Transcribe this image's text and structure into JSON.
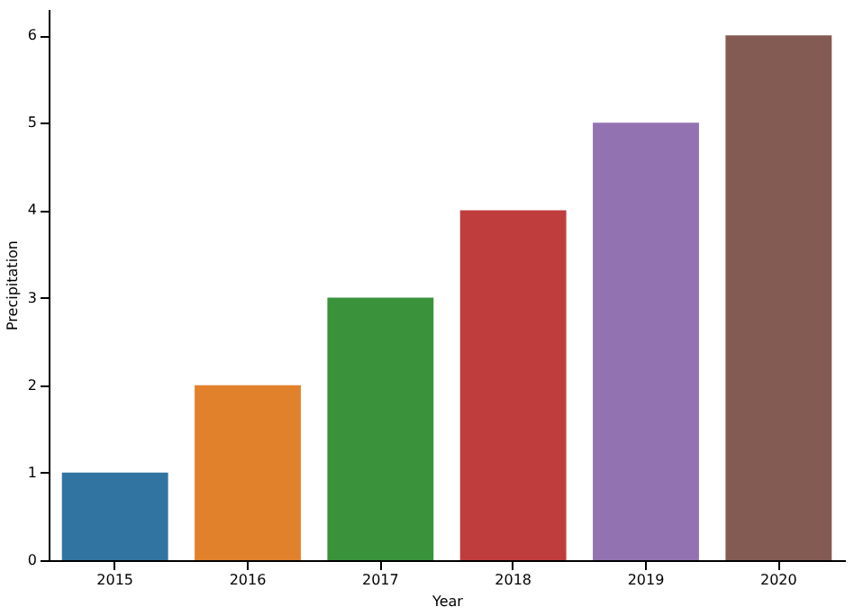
{
  "chart_data": {
    "type": "bar",
    "xlabel": "Year",
    "ylabel": "Precipitation",
    "categories": [
      "2015",
      "2016",
      "2017",
      "2018",
      "2019",
      "2020"
    ],
    "values": [
      1,
      2,
      3,
      4,
      5,
      6
    ],
    "colors": [
      "#3274a1",
      "#e1812c",
      "#3a923a",
      "#c03d3e",
      "#9372b2",
      "#845b53"
    ],
    "ylim": [
      0,
      6.3
    ],
    "yticks": [
      0,
      1,
      2,
      3,
      4,
      5,
      6
    ],
    "grid": false
  }
}
